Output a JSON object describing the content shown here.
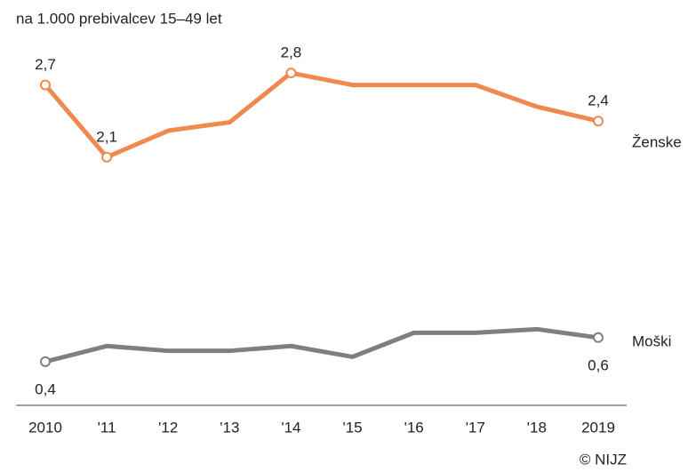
{
  "chart_data": {
    "type": "line",
    "subtitle": "na 1.000 prebivalcev 15–49 let",
    "source": "© NIJZ",
    "categories": [
      "2010",
      "'11",
      "'12",
      "'13",
      "'14",
      "'15",
      "'16",
      "'17",
      "'18",
      "2019"
    ],
    "series": [
      {
        "name": "Ženske",
        "color": "#f0894e",
        "values": [
          2.7,
          2.1,
          2.32,
          2.39,
          2.8,
          2.7,
          2.7,
          2.7,
          2.52,
          2.4
        ],
        "value_labels": [
          "2,7",
          "2,1",
          null,
          null,
          "2,8",
          null,
          null,
          null,
          null,
          "2,4"
        ]
      },
      {
        "name": "Moški",
        "color": "#7f7f7f",
        "values": [
          0.4,
          0.53,
          0.49,
          0.49,
          0.53,
          0.44,
          0.64,
          0.64,
          0.67,
          0.6
        ],
        "value_labels": [
          "0,4",
          null,
          null,
          null,
          null,
          null,
          null,
          null,
          null,
          "0,6"
        ]
      }
    ],
    "ylim": [
      0,
      3
    ]
  }
}
